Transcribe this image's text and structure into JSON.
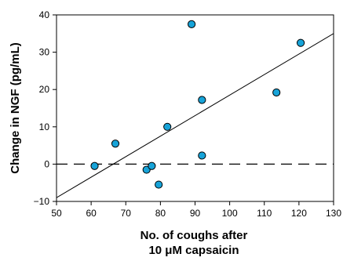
{
  "chart_data": {
    "type": "scatter",
    "xlabel_line1": "No. of coughs after",
    "xlabel_line2": "10 μM capsaicin",
    "ylabel": "Change in NGF (pg/mL)",
    "xlim": [
      50,
      130
    ],
    "ylim": [
      -10,
      40
    ],
    "xticks": [
      50,
      60,
      70,
      80,
      90,
      100,
      110,
      120,
      130
    ],
    "yticks": [
      -10,
      0,
      10,
      20,
      30,
      40
    ],
    "grid": false,
    "points": [
      {
        "x": 61,
        "y": -0.5
      },
      {
        "x": 67,
        "y": 5.5
      },
      {
        "x": 76,
        "y": -1.5
      },
      {
        "x": 77.5,
        "y": -0.5
      },
      {
        "x": 79.5,
        "y": -5.5
      },
      {
        "x": 82,
        "y": 10
      },
      {
        "x": 89,
        "y": 37.5
      },
      {
        "x": 92,
        "y": 17.2
      },
      {
        "x": 92,
        "y": 2.3
      },
      {
        "x": 113.5,
        "y": 19.2
      },
      {
        "x": 120.5,
        "y": 32.5
      }
    ],
    "fit_line": {
      "x": [
        50,
        130
      ],
      "y": [
        -9,
        35
      ]
    },
    "reference_line": {
      "y": 0,
      "style": "dashed"
    },
    "colors": {
      "point_fill": "#17a3d8",
      "point_stroke": "#000000",
      "line": "#000000"
    }
  }
}
